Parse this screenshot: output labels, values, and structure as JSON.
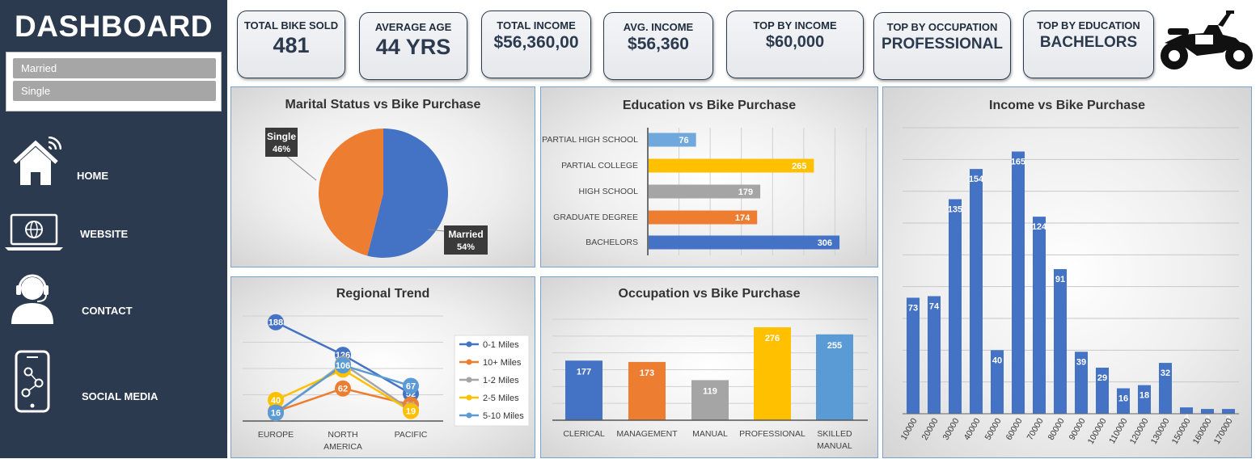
{
  "sidebar": {
    "title": "DASHBOARD",
    "slicer": [
      "Married",
      "Single"
    ],
    "nav": [
      {
        "label": "HOME",
        "icon": "home-icon"
      },
      {
        "label": "WEBSITE",
        "icon": "laptop-globe-icon"
      },
      {
        "label": "CONTACT",
        "icon": "headset-user-icon"
      },
      {
        "label": "SOCIAL MEDIA",
        "icon": "phone-network-icon"
      }
    ]
  },
  "kpis": [
    {
      "label": "TOTAL BIKE SOLD",
      "value": "481"
    },
    {
      "label": "AVERAGE AGE",
      "value": "44 YRS"
    },
    {
      "label": "TOTAL INCOME",
      "value": "$56,360,00"
    },
    {
      "label": "AVG. INCOME",
      "value": "$56,360"
    },
    {
      "label": "TOP BY INCOME",
      "value": "$60,000"
    },
    {
      "label": "TOP BY OCCUPATION",
      "value": "PROFESSIONAL"
    },
    {
      "label": "TOP BY EDUCATION",
      "value": "BACHELORS"
    }
  ],
  "logo_icon": "motorcycle-icon",
  "chart_data": [
    {
      "type": "pie",
      "title": "Marital Status vs Bike Purchase",
      "slices": [
        {
          "name": "Married",
          "value": 54,
          "label": "54%",
          "color": "#4472c4"
        },
        {
          "name": "Single",
          "value": 46,
          "label": "46%",
          "color": "#ed7d31"
        }
      ]
    },
    {
      "type": "bar",
      "orientation": "horizontal",
      "title": "Education vs Bike Purchase",
      "categories": [
        "PARTIAL HIGH SCHOOL",
        "PARTIAL COLLEGE",
        "HIGH SCHOOL",
        "GRADUATE DEGREE",
        "BACHELORS"
      ],
      "values": [
        76,
        265,
        179,
        174,
        306
      ],
      "colors": [
        "#6fa8dc",
        "#ffc000",
        "#a5a5a5",
        "#ed7d31",
        "#4472c4"
      ],
      "xlim": [
        0,
        350
      ]
    },
    {
      "type": "bar",
      "title": "Income vs Bike Purchase",
      "categories": [
        "10000",
        "20000",
        "30000",
        "40000",
        "50000",
        "60000",
        "70000",
        "80000",
        "90000",
        "100000",
        "110000",
        "120000",
        "130000",
        "150000",
        "160000",
        "170000"
      ],
      "values": [
        73,
        74,
        135,
        154,
        40,
        165,
        124,
        91,
        39,
        29,
        16,
        18,
        32,
        4,
        3,
        3
      ],
      "color": "#4472c4",
      "ylim": [
        0,
        180
      ]
    },
    {
      "type": "line",
      "title": "Regional Trend",
      "categories": [
        "EUROPE",
        "NORTH AMERICA",
        "PACIFIC"
      ],
      "series": [
        {
          "name": "0-1 Miles",
          "values": [
            188,
            126,
            52
          ],
          "color": "#4472c4"
        },
        {
          "name": "10+ Miles",
          "values": [
            18,
            62,
            31
          ],
          "color": "#ed7d31"
        },
        {
          "name": "1-2 Miles",
          "values": [
            15,
            109,
            21
          ],
          "color": "#a5a5a5"
        },
        {
          "name": "2-5 Miles",
          "values": [
            40,
            98,
            19
          ],
          "color": "#ffc000"
        },
        {
          "name": "5-10 Miles",
          "values": [
            16,
            106,
            67
          ],
          "color": "#5b9bd5"
        }
      ],
      "ylim": [
        0,
        200
      ],
      "legend": "right"
    },
    {
      "type": "bar",
      "title": "Occupation vs Bike Purchase",
      "categories": [
        "CLERICAL",
        "MANAGEMENT",
        "MANUAL",
        "PROFESSIONAL",
        "SKILLED MANUAL"
      ],
      "values": [
        177,
        173,
        119,
        276,
        255
      ],
      "colors": [
        "#4472c4",
        "#ed7d31",
        "#a5a5a5",
        "#ffc000",
        "#5b9bd5"
      ],
      "ylim": [
        0,
        300
      ]
    }
  ]
}
